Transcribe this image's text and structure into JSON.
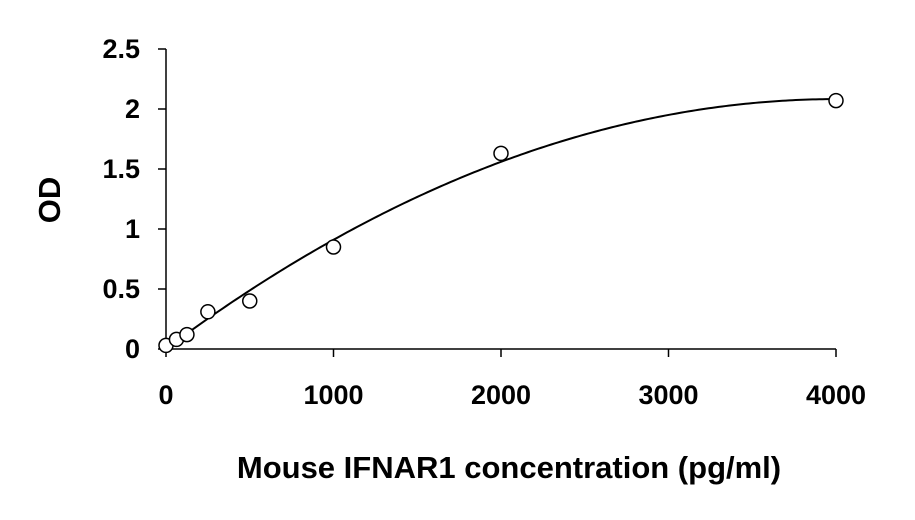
{
  "chart_data": {
    "type": "scatter",
    "title": "",
    "xlabel": "Mouse IFNAR1 concentration (pg/ml)",
    "ylabel": "OD",
    "xlim": [
      0,
      4000
    ],
    "ylim": [
      0,
      2.5
    ],
    "x_ticks": [
      "0",
      "1000",
      "2000",
      "3000",
      "4000"
    ],
    "y_ticks": [
      "0",
      "0.5",
      "1",
      "1.5",
      "2",
      "2.5"
    ],
    "grid": false,
    "legend": "none",
    "series": [
      {
        "x": [
          0,
          62.5,
          125,
          250,
          500,
          1000,
          2000,
          4000
        ],
        "y": [
          0.03,
          0.08,
          0.12,
          0.31,
          0.4,
          0.85,
          1.63,
          2.07
        ],
        "marker": "open-circle",
        "trendline": "polynomial-2"
      }
    ],
    "colors": {
      "axis": "#000000",
      "marker_stroke": "#000000",
      "marker_fill": "#ffffff",
      "trendline": "#000000"
    }
  }
}
